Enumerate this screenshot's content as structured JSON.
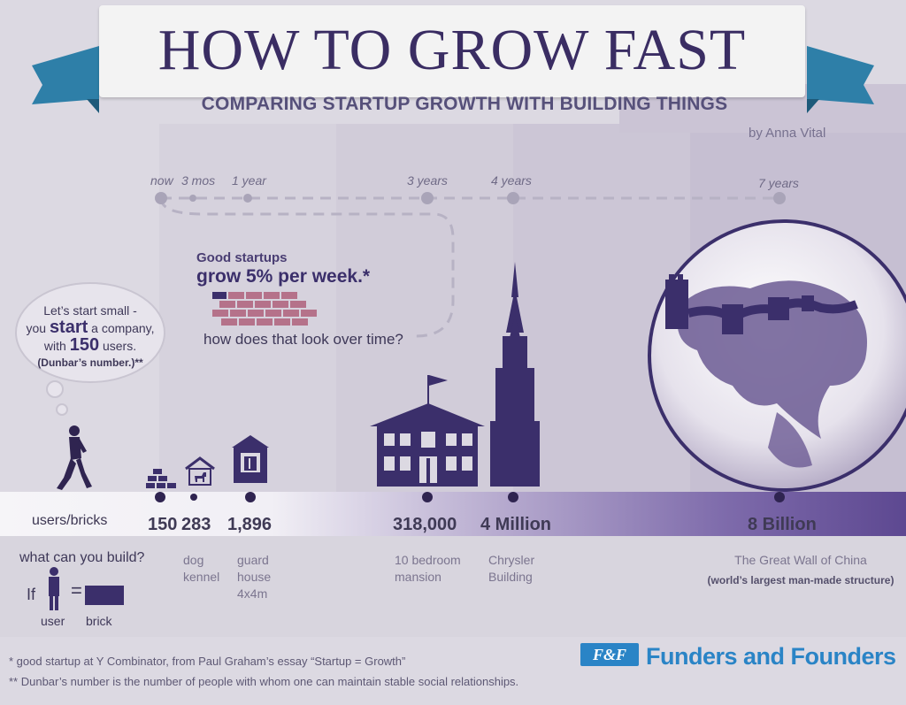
{
  "header": {
    "title": "HOW TO GROW FAST",
    "subtitle": "COMPARING STARTUP GROWTH WITH BUILDING THINGS",
    "byline": "by Anna Vital"
  },
  "timeline": {
    "labels": [
      "now",
      "3 mos",
      "1 year",
      "3 years",
      "4 years",
      "7 years"
    ]
  },
  "callout": {
    "line1": "Good startups",
    "line2": "grow 5% per week.*",
    "line3": "how does that look over time?"
  },
  "bubble": {
    "line1": "Let’s start small -",
    "line2_pre": "you ",
    "line2_big": "start",
    "line2_post": " a company,",
    "line3_pre": "with ",
    "line3_big": "150",
    "line3_post": " users.",
    "line4": "(Dunbar’s number.)**"
  },
  "bar": {
    "label": "users/bricks",
    "values": [
      "150",
      "283",
      "1,896",
      "318,000",
      "4 Million",
      "8 Billion"
    ]
  },
  "builds": {
    "question": "what can you build?",
    "dog_kennel": [
      "dog",
      "kennel"
    ],
    "guard_house": [
      "guard",
      "house",
      "4x4m"
    ],
    "mansion": [
      "10 bedroom",
      "mansion"
    ],
    "chrysler": [
      "Chrysler",
      "Building"
    ],
    "great_wall": [
      "The Great Wall of China",
      "(world’s largest man-made structure)"
    ]
  },
  "legend": {
    "if": "If",
    "equals": "=",
    "user": "user",
    "brick": "brick"
  },
  "footnotes": {
    "note1": "* good startup at Y Combinator, from Paul Graham’s essay “Startup = Growth”",
    "note2": "** Dunbar’s number is the number of people with whom one can maintain stable social relationships."
  },
  "logo": {
    "mark": "F&F",
    "name": "Funders and Founders"
  },
  "colors": {
    "background": "#dcd9e2",
    "accent_purple": "#3b2f6b",
    "bar_purple": "#6c5a9c",
    "ribbon_blue": "#2e7fa8",
    "logo_blue": "#2a84c6"
  }
}
